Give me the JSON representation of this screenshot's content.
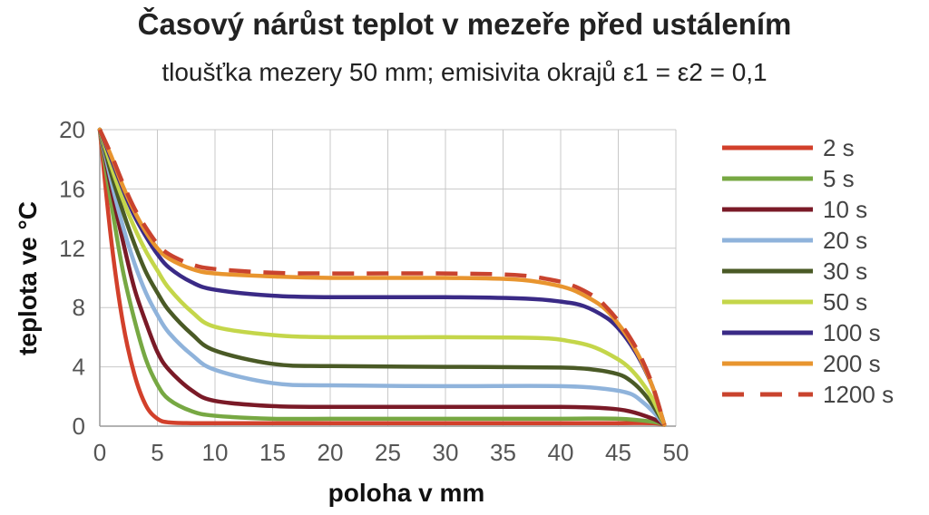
{
  "chart_data": {
    "type": "line",
    "title": "Časový nárůst teplot v mezeře před ustálením",
    "subtitle": "tloušťka mezery 50 mm; emisivita okrajů  ε1 = ε2 = 0,1",
    "xlabel": "poloha v mm",
    "ylabel": "teplota ve °C",
    "xlim": [
      0,
      50
    ],
    "ylim": [
      0,
      20
    ],
    "x_ticks": [
      "0",
      "5",
      "10",
      "15",
      "20",
      "25",
      "30",
      "35",
      "40",
      "45",
      "50"
    ],
    "y_ticks": [
      "0",
      "4",
      "8",
      "12",
      "16",
      "20"
    ],
    "grid": true,
    "legend_position": "right",
    "series": [
      {
        "name": "2 s",
        "color": "#d2402b",
        "dash": false,
        "x": [
          0,
          1,
          2,
          3,
          4,
          5,
          6,
          8,
          10,
          20,
          30,
          40,
          45,
          48,
          49
        ],
        "y": [
          20,
          12.5,
          7,
          3.5,
          1.4,
          0.5,
          0.25,
          0.2,
          0.2,
          0.2,
          0.2,
          0.2,
          0.2,
          0.2,
          0.1
        ]
      },
      {
        "name": "5 s",
        "color": "#77a843",
        "dash": false,
        "x": [
          0,
          1,
          2,
          3,
          4,
          5,
          6,
          8,
          10,
          15,
          20,
          30,
          40,
          45,
          48,
          49
        ],
        "y": [
          20,
          15,
          10.5,
          7.2,
          4.5,
          2.8,
          1.8,
          1.0,
          0.7,
          0.5,
          0.5,
          0.5,
          0.5,
          0.5,
          0.3,
          0.1
        ]
      },
      {
        "name": "10 s",
        "color": "#7a1a27",
        "dash": false,
        "x": [
          0,
          1,
          2,
          3,
          4,
          5,
          6,
          8,
          10,
          15,
          20,
          30,
          40,
          44,
          46,
          48,
          49
        ],
        "y": [
          20,
          16,
          12.5,
          9.3,
          7.0,
          5.0,
          3.8,
          2.4,
          1.7,
          1.35,
          1.3,
          1.3,
          1.3,
          1.2,
          1.0,
          0.5,
          0.1
        ]
      },
      {
        "name": "20 s",
        "color": "#8fb3db",
        "dash": false,
        "x": [
          0,
          1,
          2,
          3,
          4,
          5,
          6,
          8,
          10,
          15,
          20,
          30,
          40,
          44,
          46,
          47,
          48,
          49
        ],
        "y": [
          20,
          16.5,
          13.5,
          11.0,
          9.0,
          7.5,
          6.3,
          4.8,
          3.8,
          2.9,
          2.75,
          2.7,
          2.7,
          2.5,
          2.2,
          1.7,
          1.0,
          0.1
        ]
      },
      {
        "name": "30 s",
        "color": "#4a5a26",
        "dash": false,
        "x": [
          0,
          1,
          2,
          3,
          4,
          5,
          6,
          8,
          10,
          15,
          20,
          30,
          40,
          43,
          45,
          46,
          47,
          48,
          49
        ],
        "y": [
          20,
          17,
          14.5,
          12.3,
          10.4,
          9.0,
          7.8,
          6.2,
          5.1,
          4.2,
          4.05,
          4.0,
          3.95,
          3.8,
          3.5,
          3.1,
          2.4,
          1.4,
          0.1
        ]
      },
      {
        "name": "50 s",
        "color": "#c4d64a",
        "dash": false,
        "x": [
          0,
          1,
          2,
          3,
          4,
          5,
          6,
          8,
          10,
          15,
          20,
          30,
          38,
          41,
          43,
          45,
          46,
          47,
          48,
          49
        ],
        "y": [
          20,
          17.5,
          15.3,
          13.4,
          11.8,
          10.5,
          9.3,
          7.7,
          6.7,
          6.15,
          6.0,
          6.0,
          5.95,
          5.7,
          5.3,
          4.5,
          3.9,
          3.0,
          1.8,
          0.1
        ]
      },
      {
        "name": "100 s",
        "color": "#3a2a86",
        "dash": false,
        "x": [
          0,
          1,
          2,
          3,
          4,
          5,
          6,
          8,
          10,
          15,
          20,
          30,
          37,
          40,
          42,
          44,
          45,
          46,
          47,
          48,
          49
        ],
        "y": [
          20,
          18,
          16,
          14.2,
          12.8,
          11.6,
          10.7,
          9.7,
          9.2,
          8.8,
          8.7,
          8.7,
          8.6,
          8.4,
          8.1,
          7.3,
          6.6,
          5.6,
          4.3,
          2.6,
          0.1
        ]
      },
      {
        "name": "200 s",
        "color": "#e8952f",
        "dash": false,
        "x": [
          0,
          1,
          2,
          3,
          4,
          5,
          6,
          8,
          10,
          15,
          20,
          30,
          36,
          39,
          41,
          43,
          44,
          45,
          46,
          47,
          48,
          49
        ],
        "y": [
          20,
          18.2,
          16.2,
          14.5,
          13.1,
          12.0,
          11.3,
          10.6,
          10.3,
          10.1,
          10.0,
          10.0,
          9.9,
          9.6,
          9.2,
          8.4,
          7.8,
          6.9,
          5.8,
          4.4,
          2.6,
          0.1
        ]
      },
      {
        "name": "1200 s",
        "color": "#c9432e",
        "dash": true,
        "x": [
          0,
          1,
          2,
          3,
          4,
          5,
          6,
          8,
          10,
          15,
          20,
          30,
          36,
          39,
          41,
          43,
          44,
          45,
          46,
          47,
          48,
          49
        ],
        "y": [
          20,
          18.3,
          16.4,
          14.7,
          13.4,
          12.3,
          11.6,
          10.9,
          10.6,
          10.35,
          10.3,
          10.3,
          10.2,
          9.9,
          9.5,
          8.7,
          8.0,
          7.1,
          6.0,
          4.6,
          2.7,
          0.1
        ]
      }
    ]
  }
}
